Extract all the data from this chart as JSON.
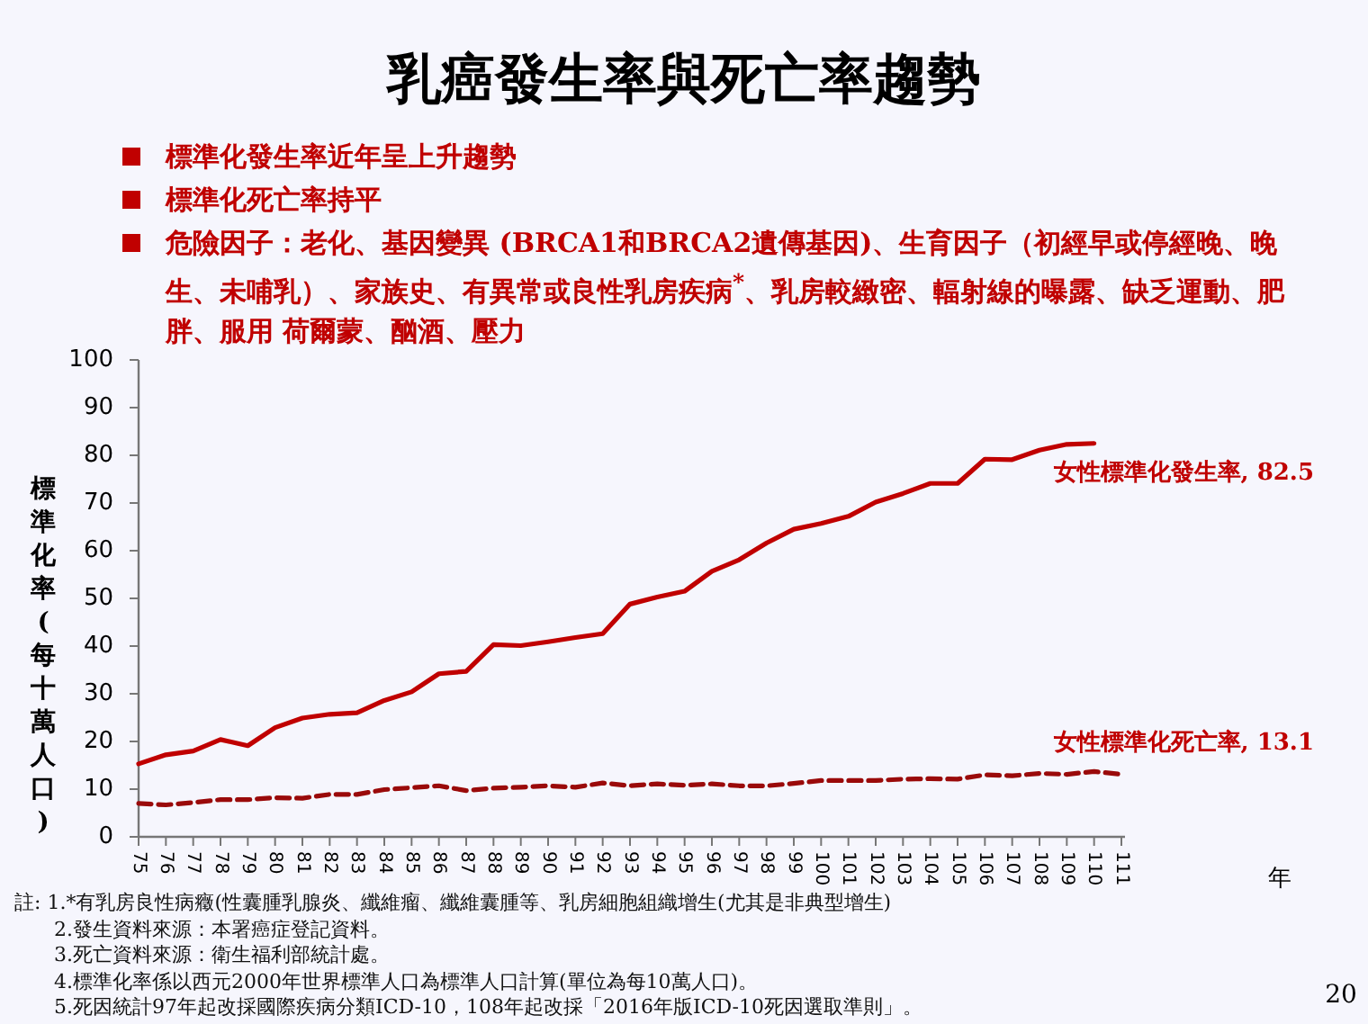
{
  "chart_data": {
    "type": "line",
    "title": "乳癌發生率與死亡率趨勢",
    "ylabel": "標準化率(每十萬人口)",
    "annotations": [
      "標準化發生率近年呈上升趨勢",
      "標準化死亡率持平",
      "危險因子：老化、基因變異 (BRCA1和BRCA2遺傳基因)、生育因子（初經早或停經晚、晚生、未哺乳）、家族史、有異常或良性乳房疾病$^{*}$、乳房較緻密、輻射線的曝露、缺乏運動、肥胖、服用 荷爾蒙、酗酒、壓力",
      {
        "text": "女性標準化發生率, 82.5",
        "x": "110",
        "y": 82.5
      },
      {
        "text": "女性標準化死亡率, 13.1",
        "x": "111",
        "y": 13.1
      },
      "註: 1.*有乳房良性病癥(性囊腫乳腺炎、纖維瘤、纖維囊腫等、乳房細胞組織增生(尤其是非典型增生)",
      "2.發生資料來源：本署癌症登記資料。",
      "3.死亡資料來源：衛生福利部統計處。",
      "4.標準化率係以西元2000年世界標準人口為標準人口計算(單位為每10萬人口)。",
      "5.死因統計97年起改採國際疾病分類ICD-10，108年起改採「2016年版ICD-10死因選取準則」。",
      "年",
      "20"
    ],
    "categories": [
      "75",
      "76",
      "77",
      "78",
      "79",
      "80",
      "81",
      "82",
      "83",
      "84",
      "85",
      "86",
      "87",
      "88",
      "89",
      "90",
      "91",
      "92",
      "93",
      "94",
      "95",
      "96",
      "97",
      "98",
      "99",
      "100",
      "101",
      "102",
      "103",
      "104",
      "105",
      "106",
      "107",
      "108",
      "109",
      "110",
      "111"
    ],
    "ylim": [
      0,
      100
    ],
    "yticks": [
      0,
      10,
      20,
      30,
      40,
      50,
      60,
      70,
      80,
      90,
      100
    ],
    "series": [
      {
        "color": "#c00000",
        "line_style": "solid",
        "values": [
          15.3,
          17.2,
          18.0,
          20.4,
          19.1,
          22.9,
          24.9,
          25.7,
          26.0,
          28.6,
          30.4,
          34.2,
          34.7,
          40.3,
          40.1,
          40.9,
          41.8,
          42.6,
          48.8,
          50.3,
          51.5,
          55.7,
          58.1,
          61.6,
          64.5,
          65.7,
          67.2,
          70.2,
          72.0,
          74.1,
          74.1,
          79.2,
          79.1,
          81.1,
          82.3,
          82.5,
          null
        ]
      },
      {
        "color": "#9a0a0a",
        "line_style": "dashed",
        "values": [
          7.0,
          6.7,
          7.2,
          7.8,
          7.8,
          8.2,
          8.1,
          8.9,
          8.9,
          9.9,
          10.3,
          10.7,
          9.7,
          10.2,
          10.4,
          10.7,
          10.4,
          11.3,
          10.7,
          11.1,
          10.8,
          11.1,
          10.7,
          10.7,
          11.2,
          11.8,
          11.8,
          11.8,
          12.1,
          12.2,
          12.1,
          13.0,
          12.8,
          13.3,
          13.1,
          13.7,
          13.1
        ]
      }
    ]
  }
}
